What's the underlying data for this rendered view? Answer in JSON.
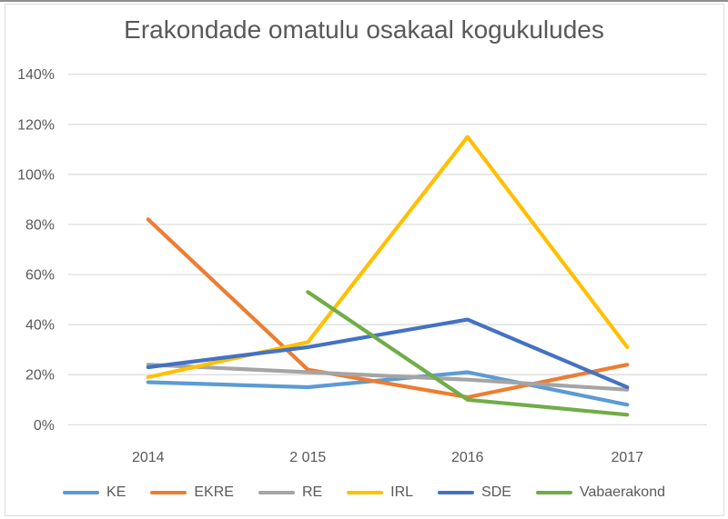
{
  "title": "Erakondade omatulu osakaal kogukuludes",
  "colors": {
    "grid": "#D9D9D9",
    "tick_text": "#595959",
    "title_text": "#595959"
  },
  "chart_data": {
    "type": "line",
    "title": "Erakondade omatulu osakaal kogukuludes",
    "categories": [
      "2014",
      "2 015",
      "2016",
      "2017"
    ],
    "series": [
      {
        "name": "KE",
        "color": "#5B9BD5",
        "values": [
          17,
          15,
          21,
          8
        ]
      },
      {
        "name": "EKRE",
        "color": "#ED7D31",
        "values": [
          82,
          22,
          11,
          24
        ]
      },
      {
        "name": "RE",
        "color": "#A5A5A5",
        "values": [
          24,
          21,
          18,
          14
        ]
      },
      {
        "name": "IRL",
        "color": "#FFC000",
        "values": [
          19,
          33,
          115,
          31
        ]
      },
      {
        "name": "SDE",
        "color": "#4472C4",
        "values": [
          23,
          31,
          42,
          15
        ]
      },
      {
        "name": "Vabaerakond",
        "color": "#70AD47",
        "values": [
          null,
          53,
          10,
          4
        ]
      }
    ],
    "ylim": [
      0,
      140
    ],
    "ytick_step": 20,
    "y_tick_labels": [
      "0%",
      "20%",
      "40%",
      "60%",
      "80%",
      "100%",
      "120%",
      "140%"
    ],
    "xlabel": "",
    "ylabel": "",
    "grid": "horizontal",
    "legend_position": "bottom"
  }
}
